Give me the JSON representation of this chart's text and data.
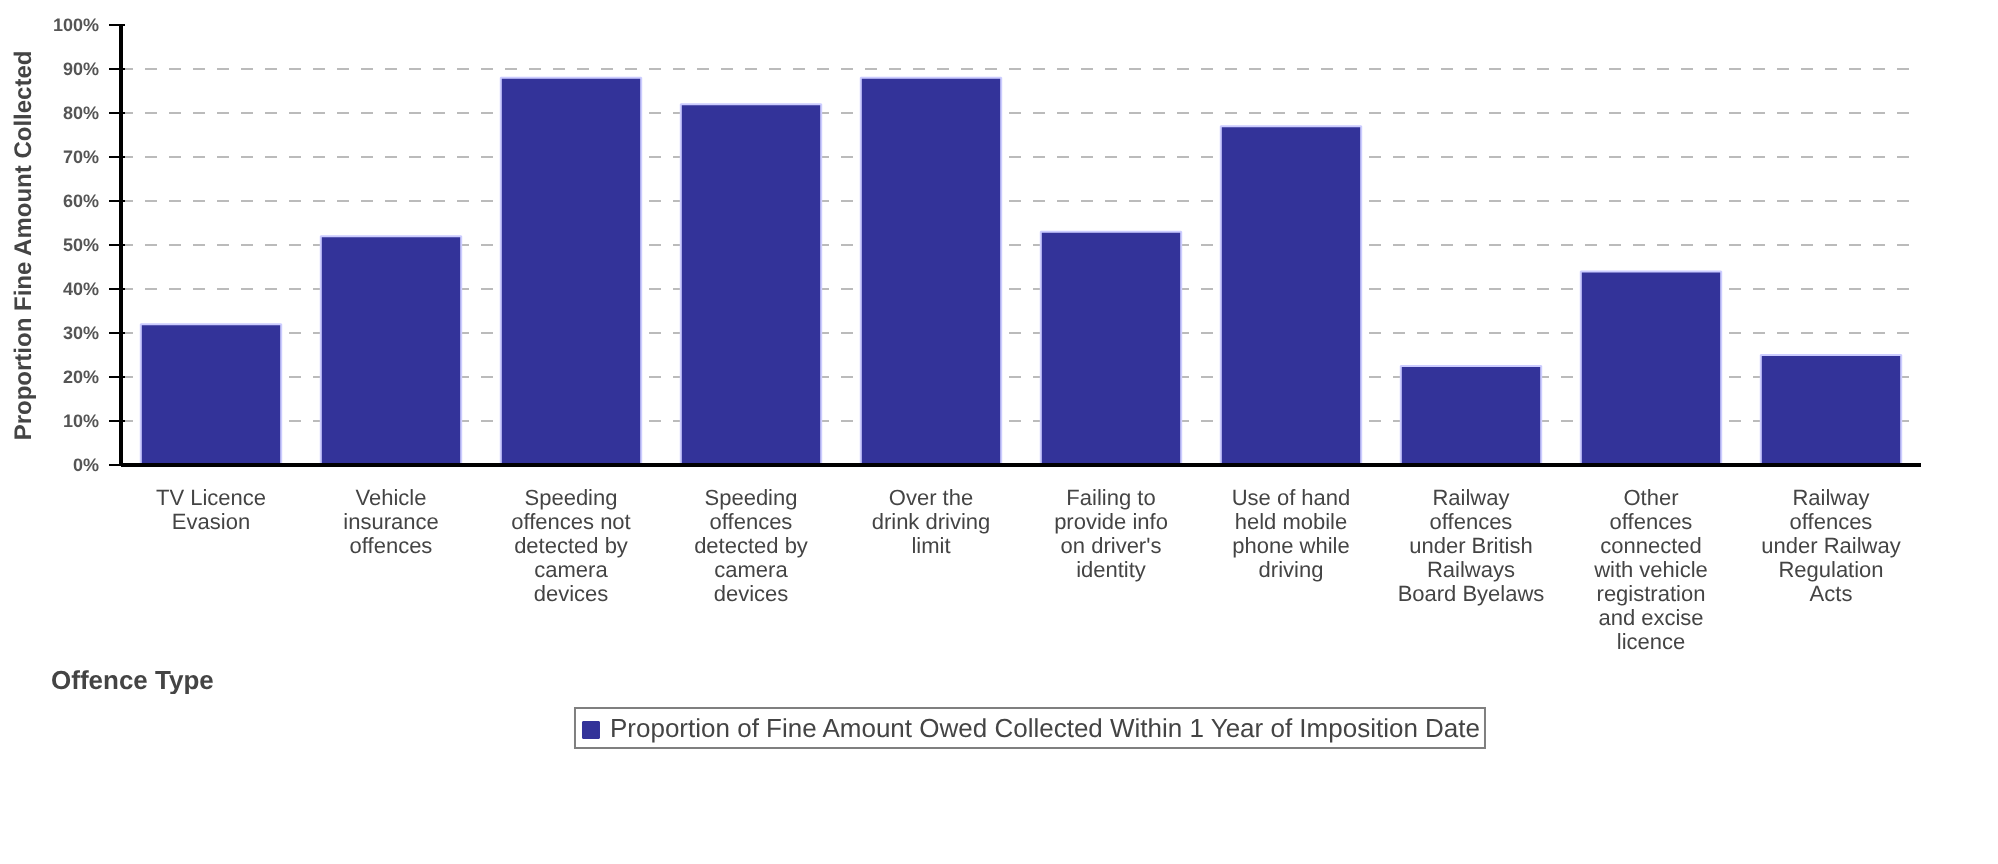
{
  "chart_data": {
    "type": "bar",
    "ylabel": "Proportion Fine Amount Collected",
    "xlabel": "Offence Type",
    "categories": [
      "TV Licence Evasion",
      "Vehicle insurance offences",
      "Speeding offences not detected by camera devices",
      "Speeding offences detected by camera devices",
      "Over the drink driving limit",
      "Failing to provide info on driver's identity",
      "Use of hand held mobile phone while driving",
      "Railway offences under British Railways Board Byelaws",
      "Other offences connected with vehicle registration and excise licence",
      "Railway offences under Railway Regulation Acts"
    ],
    "series": [
      {
        "name": "Proportion of Fine Amount Owed Collected Within 1 Year of Imposition Date",
        "color": "#333399",
        "values": [
          32,
          52,
          88,
          82,
          88,
          53,
          77,
          22.5,
          44,
          25
        ]
      }
    ],
    "ylim": [
      0,
      100
    ],
    "yticks": [
      {
        "value": 0,
        "label": "0%"
      },
      {
        "value": 10,
        "label": "10%"
      },
      {
        "value": 20,
        "label": "20%"
      },
      {
        "value": 30,
        "label": "30%"
      },
      {
        "value": 40,
        "label": "40%"
      },
      {
        "value": 50,
        "label": "50%"
      },
      {
        "value": 60,
        "label": "60%"
      },
      {
        "value": 70,
        "label": "70%"
      },
      {
        "value": 80,
        "label": "80%"
      },
      {
        "value": 90,
        "label": "90%"
      },
      {
        "value": 100,
        "label": "100%"
      }
    ],
    "grid": "y",
    "legend": "bottom"
  }
}
